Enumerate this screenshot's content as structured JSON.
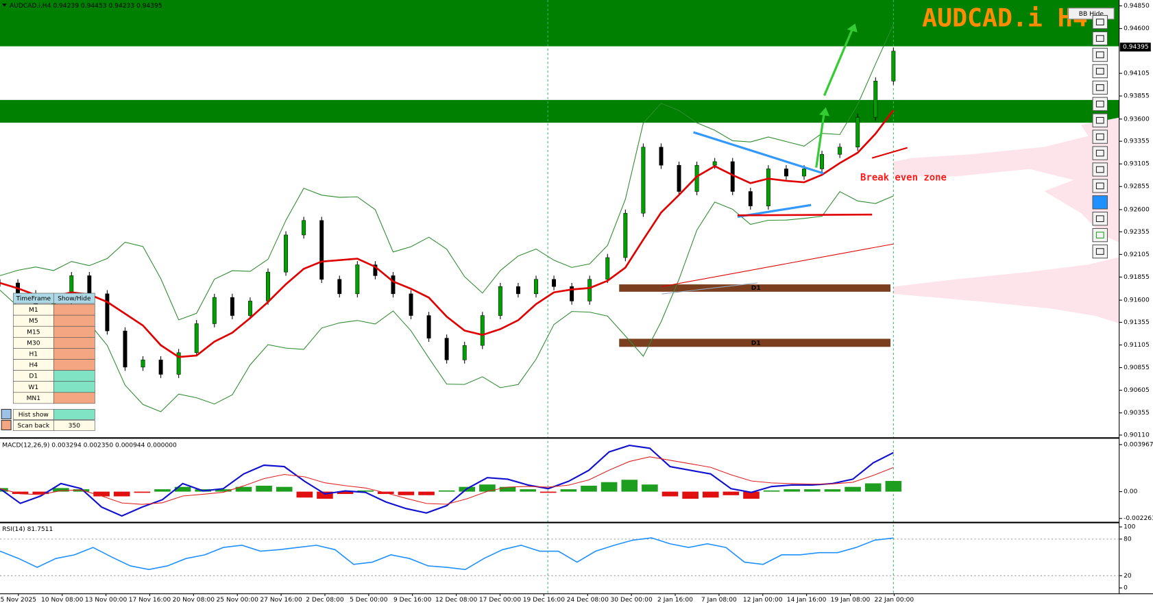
{
  "header": {
    "symbol_info": "AUDCAD.i,H4  0.94239 0.94453 0.94233 0.94395",
    "watermark": "AUDCAD.i H4",
    "button": "BB Hide",
    "current_price": "0.94395"
  },
  "price_axis": {
    "labels": [
      "0.94850",
      "0.94600",
      "0.94105",
      "0.93855",
      "0.93600",
      "0.93355",
      "0.93105",
      "0.92855",
      "0.92600",
      "0.92355",
      "0.92105",
      "0.91855",
      "0.91600",
      "0.91355",
      "0.91105",
      "0.90855",
      "0.90605",
      "0.90355",
      "0.90110"
    ]
  },
  "time_axis": {
    "labels": [
      "5 Nov 2025",
      "10 Nov 08:00",
      "13 Nov 00:00",
      "17 Nov 16:00",
      "20 Nov 08:00",
      "25 Nov 00:00",
      "27 Nov 16:00",
      "2 Dec 08:00",
      "5 Dec 00:00",
      "9 Dec 16:00",
      "12 Dec 08:00",
      "17 Dec 00:00",
      "19 Dec 16:00",
      "24 Dec 08:00",
      "30 Dec 00:00",
      "2 Jan 16:00",
      "7 Jan 08:00",
      "12 Jan 00:00",
      "14 Jan 16:00",
      "19 Jan 08:00",
      "22 Jan 00:00"
    ]
  },
  "price": {
    "closes": [
      0.9179,
      0.9167,
      0.9151,
      0.9159,
      0.9187,
      0.9167,
      0.9126,
      0.9086,
      0.9094,
      0.9078,
      0.9102,
      0.9134,
      0.9163,
      0.9143,
      0.9159,
      0.9191,
      0.9232,
      0.9248,
      0.9183,
      0.9167,
      0.9199,
      0.9187,
      0.9167,
      0.9143,
      0.9118,
      0.9094,
      0.911,
      0.9143,
      0.9175,
      0.9167,
      0.9183,
      0.9175,
      0.9159,
      0.9183,
      0.9207,
      0.9256,
      0.9329,
      0.9309,
      0.928,
      0.9309,
      0.9313,
      0.928,
      0.9264,
      0.9305,
      0.9297,
      0.9305,
      0.9321,
      0.9329,
      0.9362,
      0.9402,
      0.9435
    ]
  },
  "annotations": {
    "break_even": "Break even zone",
    "zone_labels": [
      "D1",
      "D1"
    ]
  },
  "macd": {
    "label": "MACD(12,26,9) 0.003294 0.002350 0.000944 0.000000",
    "axis_labels": [
      "0.003967",
      "0.00",
      "-0.002263"
    ],
    "main": [
      0.00025,
      -0.00099,
      -0.00037,
      0.00068,
      0.00025,
      -0.0013,
      -0.00205,
      -0.0013,
      -0.00068,
      0.00068,
      6e-05,
      0.00025,
      0.00149,
      0.00223,
      0.00211,
      0.00087,
      -0.00019,
      6e-05,
      -6e-05,
      -0.00087,
      -0.00143,
      -0.0018,
      -0.00118,
      0.00025,
      0.00118,
      0.00105,
      0.00056,
      0.00025,
      0.00087,
      0.0018,
      0.00335,
      0.0039,
      0.00366,
      0.00211,
      0.0018,
      0.00149,
      0.00025,
      -6e-05,
      0.00043,
      0.00056,
      0.00056,
      0.00068,
      0.00105,
      0.00242,
      0.00329
    ],
    "histogram": [
      0.0003,
      -0.0002,
      -0.0002,
      0.0003,
      0.0002,
      -0.0004,
      -0.0004,
      -0.0001,
      0.0002,
      0.0004,
      0.0002,
      0.0002,
      0.0004,
      0.0005,
      0.0004,
      -0.0005,
      -0.0006,
      -0.0002,
      0.0001,
      -0.0002,
      -0.0003,
      -0.0003,
      0.0001,
      0.0004,
      0.0006,
      0.0004,
      0.0002,
      -0.0001,
      0.0002,
      0.0005,
      0.0008,
      0.001,
      0.0006,
      -0.0004,
      -0.0006,
      -0.0005,
      -0.0003,
      -0.0006,
      0.0001,
      0.0002,
      0.0002,
      0.0002,
      0.0004,
      0.0007,
      0.0009
    ]
  },
  "rsi": {
    "label": "RSI(14) 81.7511",
    "axis_labels": [
      "100",
      "80",
      "20",
      "0"
    ],
    "values": [
      60.2,
      48.2,
      33.7,
      48.2,
      54.2,
      66.3,
      50.6,
      36.1,
      30.1,
      36.1,
      48.2,
      54.2,
      66.3,
      69.9,
      60.2,
      62.7,
      66.3,
      69.9,
      62.7,
      38.6,
      42.2,
      54.2,
      48.2,
      36.1,
      33.7,
      30.1,
      48.2,
      62.7,
      69.9,
      60.2,
      60.2,
      42.2,
      60.2,
      69.9,
      78.3,
      82,
      72.3,
      66.3,
      72.3,
      66.3,
      42.2,
      38.6,
      54.2,
      54.2,
      57.8,
      57.8,
      66.3,
      78.3,
      81.8
    ]
  },
  "timeframe_panel": {
    "header": [
      "TimeFrame",
      "Show/Hide"
    ],
    "rows": [
      {
        "label": "M1",
        "color": "#f4a582"
      },
      {
        "label": "M5",
        "color": "#f4a582"
      },
      {
        "label": "M15",
        "color": "#f4a582"
      },
      {
        "label": "M30",
        "color": "#f4a582"
      },
      {
        "label": "H1",
        "color": "#f4a582"
      },
      {
        "label": "H4",
        "color": "#f4a582"
      },
      {
        "label": "D1",
        "color": "#7fe3c4"
      },
      {
        "label": "W1",
        "color": "#7fe3c4"
      },
      {
        "label": "MN1",
        "color": "#f4a582"
      }
    ],
    "hist_show": {
      "label": "Hist show",
      "color": "#7fe3c4"
    },
    "scan_back": {
      "label": "Scan back",
      "value": "350"
    }
  }
}
